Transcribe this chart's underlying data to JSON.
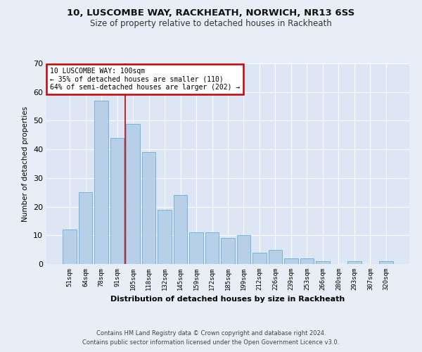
{
  "title_line1": "10, LUSCOMBE WAY, RACKHEATH, NORWICH, NR13 6SS",
  "title_line2": "Size of property relative to detached houses in Rackheath",
  "xlabel": "Distribution of detached houses by size in Rackheath",
  "ylabel": "Number of detached properties",
  "categories": [
    "51sqm",
    "64sqm",
    "78sqm",
    "91sqm",
    "105sqm",
    "118sqm",
    "132sqm",
    "145sqm",
    "159sqm",
    "172sqm",
    "185sqm",
    "199sqm",
    "212sqm",
    "226sqm",
    "239sqm",
    "253sqm",
    "266sqm",
    "280sqm",
    "293sqm",
    "307sqm",
    "320sqm"
  ],
  "values": [
    12,
    25,
    57,
    44,
    49,
    39,
    19,
    24,
    11,
    11,
    9,
    10,
    4,
    5,
    2,
    2,
    1,
    0,
    1,
    0,
    1
  ],
  "bar_color": "#b8cfe8",
  "bar_edge_color": "#6baed6",
  "annotation_box_text": "10 LUSCOMBE WAY: 100sqm\n← 35% of detached houses are smaller (110)\n64% of semi-detached houses are larger (202) →",
  "annotation_box_color": "#ffffff",
  "annotation_box_edge_color": "#cc0000",
  "vline_x": 3.5,
  "vline_color": "#cc0000",
  "background_color": "#e8eef7",
  "plot_bg_color": "#dce6f5",
  "grid_color": "#ffffff",
  "footer_line1": "Contains HM Land Registry data © Crown copyright and database right 2024.",
  "footer_line2": "Contains public sector information licensed under the Open Government Licence v3.0.",
  "ylim": [
    0,
    70
  ],
  "yticks": [
    0,
    10,
    20,
    30,
    40,
    50,
    60,
    70
  ]
}
